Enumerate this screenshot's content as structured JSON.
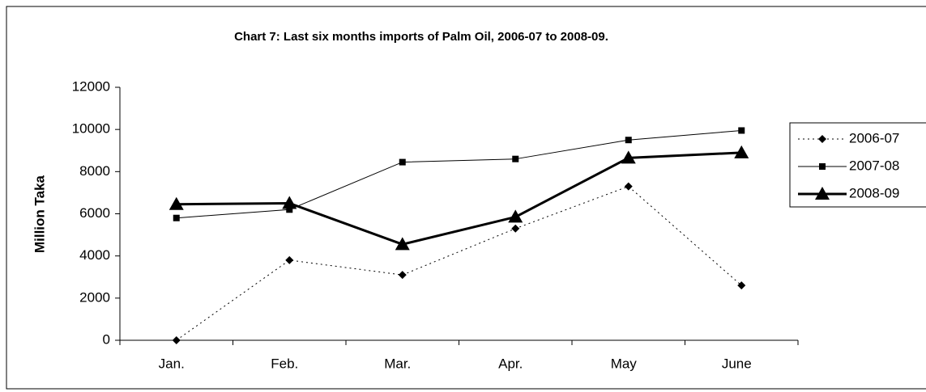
{
  "chart_data": {
    "type": "line",
    "title": "Chart 7: Last six months imports of Palm Oil, 2006-07 to 2008-09.",
    "y_label": "Million Taka",
    "categories": [
      "Jan.",
      "Feb.",
      "Mar.",
      "Apr.",
      "May",
      "June"
    ],
    "series": [
      {
        "name": "2006-07",
        "color": "#000000",
        "marker": "diamond",
        "dash": "dotted",
        "width": 1,
        "values": [
          0,
          3800,
          3100,
          5300,
          7300,
          2600
        ]
      },
      {
        "name": "2007-08",
        "color": "#000000",
        "marker": "square",
        "dash": "solid",
        "width": 1,
        "values": [
          5800,
          6200,
          8450,
          8600,
          9500,
          9950
        ]
      },
      {
        "name": "2008-09",
        "color": "#000000",
        "marker": "triangle",
        "dash": "solid",
        "width": 3,
        "values": [
          6450,
          6500,
          4550,
          5850,
          8650,
          8900
        ]
      }
    ],
    "ylim": [
      0,
      12000
    ],
    "yticks": [
      0,
      2000,
      4000,
      6000,
      8000,
      10000,
      12000
    ],
    "grid": false,
    "legend": "right"
  }
}
